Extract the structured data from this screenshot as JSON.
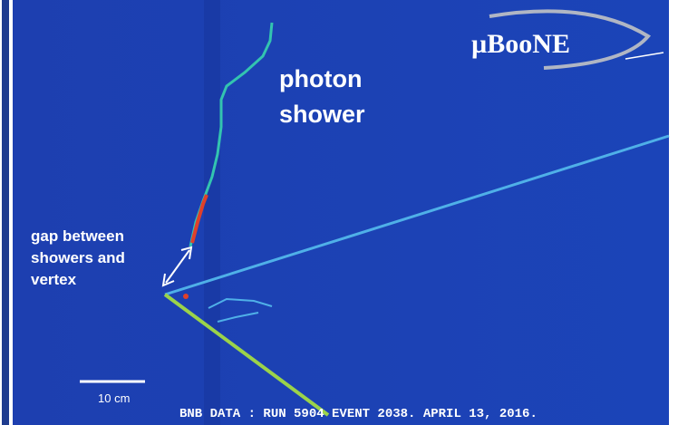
{
  "logo": "µBooNE",
  "annotations": {
    "photon_shower": [
      "photon",
      "shower"
    ],
    "gap": [
      "gap between",
      "showers and",
      "vertex"
    ]
  },
  "scale_bar": "10 cm",
  "caption": "BNB DATA : RUN 5904 EVENT 2038. APRIL 13, 2016."
}
